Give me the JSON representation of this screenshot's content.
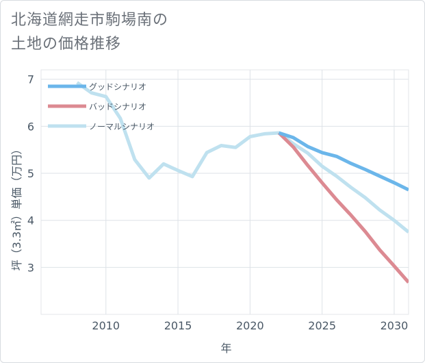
{
  "title_line1": "北海道網走市駒場南の",
  "title_line2": "土地の価格推移",
  "chart_data": {
    "type": "line",
    "title": "北海道網走市駒場南の土地の価格推移",
    "xlabel": "年",
    "ylabel": "坪（3.3㎡）単価（万円）",
    "xlim": [
      2005.5,
      2031
    ],
    "ylim": [
      2,
      7.2
    ],
    "xticks": [
      2010,
      2015,
      2020,
      2025,
      2030
    ],
    "yticks": [
      3,
      4,
      5,
      6,
      7
    ],
    "grid": true,
    "legend_position": "top-left",
    "series": [
      {
        "name": "グッドシナリオ",
        "color": "#6bb6ea",
        "x": [
          2022,
          2023,
          2024,
          2025,
          2026,
          2027,
          2028,
          2029,
          2030,
          2031
        ],
        "y": [
          5.86,
          5.76,
          5.57,
          5.44,
          5.36,
          5.21,
          5.08,
          4.94,
          4.8,
          4.65
        ]
      },
      {
        "name": "バッドシナリオ",
        "color": "#dc8a92",
        "x": [
          2022,
          2023,
          2024,
          2025,
          2026,
          2027,
          2028,
          2029,
          2030,
          2031
        ],
        "y": [
          5.86,
          5.56,
          5.17,
          4.8,
          4.44,
          4.11,
          3.76,
          3.37,
          3.03,
          2.68
        ]
      },
      {
        "name": "ノーマルシナリオ",
        "color": "#bfe1ef",
        "x": [
          2008,
          2009,
          2010,
          2011,
          2012,
          2013,
          2014,
          2015,
          2016,
          2017,
          2018,
          2019,
          2020,
          2021,
          2022,
          2023,
          2024,
          2025,
          2026,
          2027,
          2028,
          2029,
          2030,
          2031
        ],
        "y": [
          6.93,
          6.71,
          6.63,
          6.17,
          5.29,
          4.9,
          5.2,
          5.06,
          4.93,
          5.44,
          5.59,
          5.55,
          5.78,
          5.84,
          5.86,
          5.63,
          5.43,
          5.15,
          4.94,
          4.7,
          4.48,
          4.22,
          4.0,
          3.75
        ]
      }
    ]
  }
}
